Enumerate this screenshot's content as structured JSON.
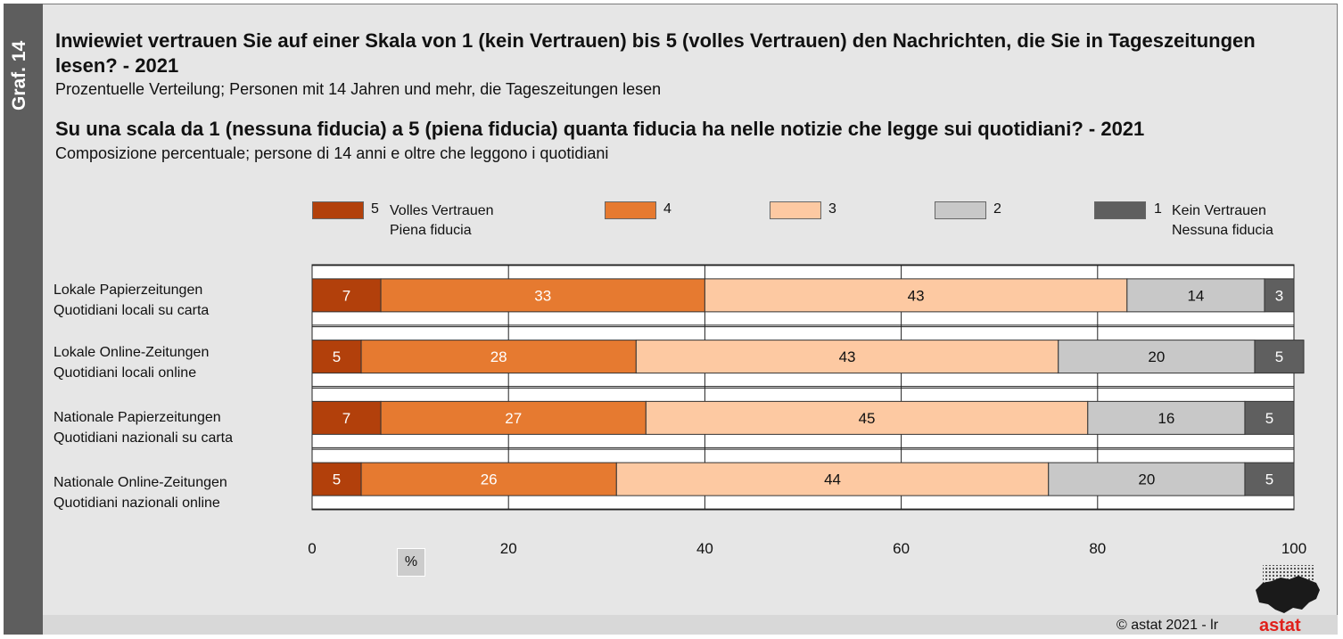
{
  "side_tab": "Graf. 14",
  "title_de": "Inwiewiet vertrauen Sie auf einer Skala von 1 (kein Vertrauen) bis 5 (volles Vertrauen) den Nachrichten, die Sie in Tageszeitungen lesen? - 2021",
  "subtitle_de": "Prozentuelle Verteilung; Personen mit 14 Jahren und mehr, die Tageszeitungen lesen",
  "title_it": "Su una scala da 1 (nessuna fiducia) a 5 (piena fiducia) quanta fiducia ha nelle notizie che legge sui quotidiani? - 2021",
  "subtitle_it": "Composizione percentuale; persone di 14 anni e oltre che leggono i quotidiani",
  "legend": [
    {
      "code": "5",
      "line1": "Volles Vertrauen",
      "line2": "Piena fiducia",
      "color": "#b2400b"
    },
    {
      "code": "4",
      "line1": "",
      "line2": "",
      "color": "#e67a30"
    },
    {
      "code": "3",
      "line1": "",
      "line2": "",
      "color": "#fdc9a2"
    },
    {
      "code": "2",
      "line1": "",
      "line2": "",
      "color": "#c8c8c8"
    },
    {
      "code": "1",
      "line1": "Kein Vertrauen",
      "line2": "Nessuna fiducia",
      "color": "#5f5f5f"
    }
  ],
  "row_labels": [
    {
      "de": "Lokale Papierzeitungen",
      "it": "Quotidiani locali su carta"
    },
    {
      "de": "Lokale Online-Zeitungen",
      "it": "Quotidiani locali online"
    },
    {
      "de": "Nationale Papierzeitungen",
      "it": "Quotidiani nazionali su carta"
    },
    {
      "de": "Nationale Online-Zeitungen",
      "it": "Quotidiani nazionali online"
    }
  ],
  "unit_label": "%",
  "copyright": "©  astat 2021 - lr",
  "logo_text": "astat",
  "chart_data": {
    "type": "bar",
    "orientation": "horizontal",
    "stacked": true,
    "categories": [
      "Lokale Papierzeitungen / Quotidiani locali su carta",
      "Lokale Online-Zeitungen / Quotidiani locali online",
      "Nationale Papierzeitungen / Quotidiani nazionali su carta",
      "Nationale Online-Zeitungen / Quotidiani nazionali online"
    ],
    "series": [
      {
        "name": "5 Volles Vertrauen / Piena fiducia",
        "values": [
          7,
          5,
          7,
          5
        ],
        "color": "#b2400b",
        "label_color": "#ffffff"
      },
      {
        "name": "4",
        "values": [
          33,
          28,
          27,
          26
        ],
        "color": "#e67a30",
        "label_color": "#ffffff"
      },
      {
        "name": "3",
        "values": [
          43,
          43,
          45,
          44
        ],
        "color": "#fdc9a2",
        "label_color": "#111111"
      },
      {
        "name": "2",
        "values": [
          14,
          20,
          16,
          20
        ],
        "color": "#c8c8c8",
        "label_color": "#111111"
      },
      {
        "name": "1 Kein Vertrauen / Nessuna fiducia",
        "values": [
          3,
          5,
          5,
          5
        ],
        "color": "#5f5f5f",
        "label_color": "#ffffff"
      }
    ],
    "xlim": [
      0,
      100
    ],
    "xticks": [
      0,
      20,
      40,
      60,
      80,
      100
    ],
    "xlabel": "%",
    "grid": true
  }
}
